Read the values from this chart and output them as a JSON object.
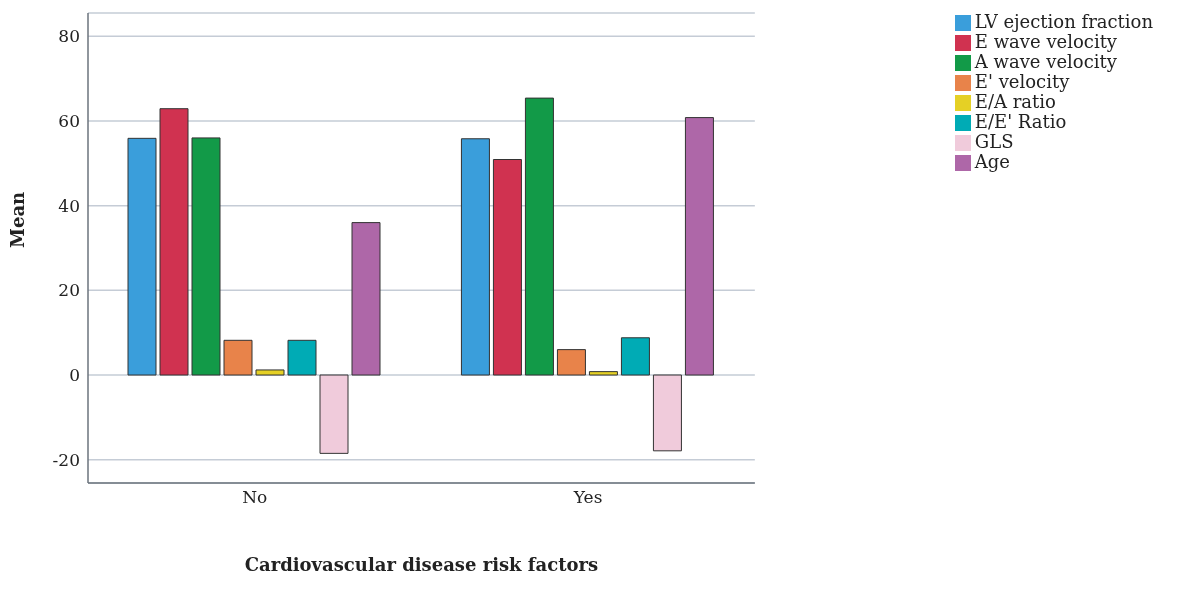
{
  "chart_data": {
    "type": "bar",
    "xlabel": "Cardiovascular disease risk factors",
    "ylabel": "Mean",
    "categories": [
      "No",
      "Yes"
    ],
    "series": [
      {
        "name": "LV ejection fraction",
        "color": "#3a9edb",
        "values": [
          55.9,
          55.8
        ]
      },
      {
        "name": "E wave velocity",
        "color": "#d03250",
        "values": [
          62.9,
          50.9
        ]
      },
      {
        "name": "A wave velocity",
        "color": "#129a48",
        "values": [
          56,
          65.4
        ]
      },
      {
        "name": "E' velocity",
        "color": "#e8834a",
        "values": [
          8.2,
          6.0
        ]
      },
      {
        "name": "E/A ratio",
        "color": "#e5d025",
        "values": [
          1.2,
          0.8
        ]
      },
      {
        "name": "E/E' Ratio",
        "color": "#00abb5",
        "values": [
          8.2,
          8.8
        ]
      },
      {
        "name": "GLS",
        "color": "#f0cbdb",
        "values": [
          -18.5,
          -17.9
        ]
      },
      {
        "name": "Age",
        "color": "#ae67a8",
        "values": [
          36.0,
          60.8
        ]
      }
    ],
    "ylim": [
      -25.5,
      85.5
    ],
    "yticks": [
      -20,
      0,
      20,
      40,
      60,
      80
    ],
    "grid": "y",
    "legend": "top right"
  }
}
